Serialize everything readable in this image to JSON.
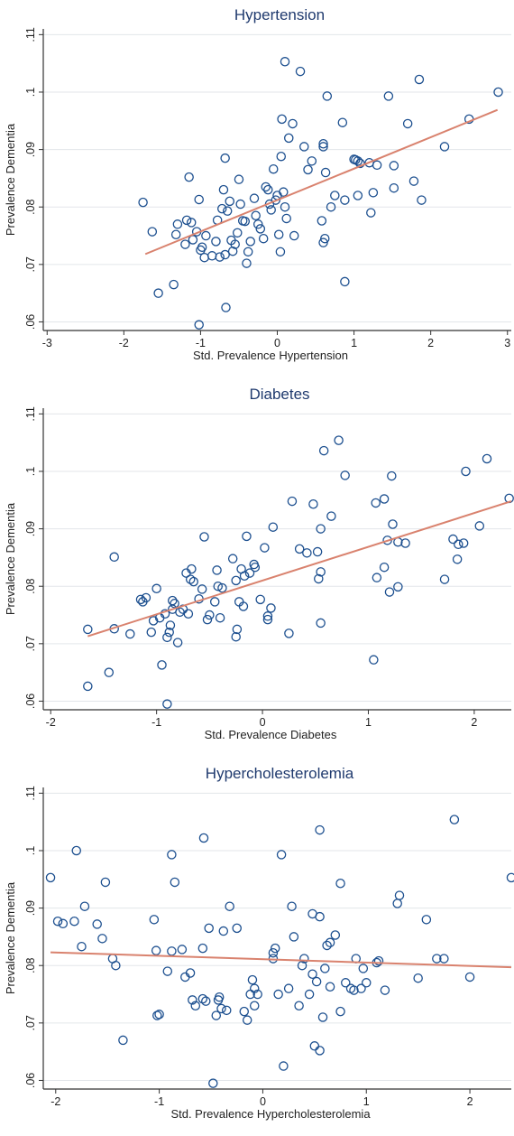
{
  "chart_data": [
    {
      "type": "scatter",
      "title": "Hypertension",
      "xlabel": "Std. Prevalence Hypertension",
      "ylabel": "Prevalence Dementia",
      "xlim": [
        -3.05,
        3.05
      ],
      "ylim": [
        0.0585,
        0.111
      ],
      "xticks": [
        -3,
        -2,
        -1,
        0,
        1,
        2,
        3
      ],
      "xtick_labels": [
        "-3",
        "-2",
        "-1",
        "0",
        "1",
        "2",
        "3"
      ],
      "yticks": [
        0.06,
        0.07,
        0.08,
        0.09,
        0.1,
        0.11
      ],
      "ytick_labels": [
        ".06",
        ".07",
        ".08",
        ".09",
        ".1",
        ".11"
      ],
      "grid": true,
      "fit_line": {
        "x": [
          -1.72,
          2.87
        ],
        "y": [
          0.0718,
          0.0969
        ]
      },
      "points": [
        [
          -1.75,
          0.0808
        ],
        [
          -1.63,
          0.0757
        ],
        [
          -1.55,
          0.065
        ],
        [
          -1.35,
          0.0665
        ],
        [
          -1.32,
          0.0752
        ],
        [
          -1.3,
          0.077
        ],
        [
          -1.2,
          0.0735
        ],
        [
          -1.18,
          0.0777
        ],
        [
          -1.15,
          0.0852
        ],
        [
          -1.12,
          0.0773
        ],
        [
          -1.1,
          0.0743
        ],
        [
          -1.05,
          0.0757
        ],
        [
          -1.02,
          0.0813
        ],
        [
          -1.0,
          0.0725
        ],
        [
          -0.98,
          0.073
        ],
        [
          -0.95,
          0.0712
        ],
        [
          -1.02,
          0.0595
        ],
        [
          -0.93,
          0.075
        ],
        [
          -0.85,
          0.0715
        ],
        [
          -0.8,
          0.074
        ],
        [
          -0.78,
          0.0777
        ],
        [
          -0.75,
          0.0713
        ],
        [
          -0.72,
          0.0797
        ],
        [
          -0.7,
          0.083
        ],
        [
          -0.68,
          0.0717
        ],
        [
          -0.68,
          0.0885
        ],
        [
          -0.67,
          0.0625
        ],
        [
          -0.65,
          0.0793
        ],
        [
          -0.62,
          0.081
        ],
        [
          -0.6,
          0.0742
        ],
        [
          -0.58,
          0.0723
        ],
        [
          -0.55,
          0.0735
        ],
        [
          -0.52,
          0.0755
        ],
        [
          -0.5,
          0.0848
        ],
        [
          -0.48,
          0.0805
        ],
        [
          -0.45,
          0.0776
        ],
        [
          -0.42,
          0.0775
        ],
        [
          -0.4,
          0.0702
        ],
        [
          -0.38,
          0.0722
        ],
        [
          -0.35,
          0.074
        ],
        [
          -0.3,
          0.0815
        ],
        [
          -0.28,
          0.0785
        ],
        [
          -0.25,
          0.077
        ],
        [
          -0.22,
          0.0762
        ],
        [
          -0.18,
          0.0745
        ],
        [
          -0.15,
          0.0835
        ],
        [
          -0.12,
          0.083
        ],
        [
          -0.1,
          0.0805
        ],
        [
          -0.08,
          0.0795
        ],
        [
          -0.05,
          0.0866
        ],
        [
          -0.02,
          0.0812
        ],
        [
          0.0,
          0.082
        ],
        [
          0.02,
          0.0752
        ],
        [
          0.04,
          0.0722
        ],
        [
          0.05,
          0.0888
        ],
        [
          0.06,
          0.0953
        ],
        [
          0.08,
          0.0826
        ],
        [
          0.1,
          0.1053
        ],
        [
          0.1,
          0.08
        ],
        [
          0.12,
          0.078
        ],
        [
          0.15,
          0.092
        ],
        [
          0.2,
          0.0945
        ],
        [
          0.22,
          0.075
        ],
        [
          0.3,
          0.1036
        ],
        [
          0.35,
          0.0905
        ],
        [
          0.4,
          0.0865
        ],
        [
          0.45,
          0.088
        ],
        [
          0.58,
          0.0776
        ],
        [
          0.6,
          0.091
        ],
        [
          0.6,
          0.0905
        ],
        [
          0.6,
          0.0738
        ],
        [
          0.62,
          0.0745
        ],
        [
          0.63,
          0.086
        ],
        [
          0.65,
          0.0993
        ],
        [
          0.7,
          0.08
        ],
        [
          0.75,
          0.082
        ],
        [
          0.85,
          0.0947
        ],
        [
          0.88,
          0.0812
        ],
        [
          0.88,
          0.067
        ],
        [
          1.0,
          0.0883
        ],
        [
          1.02,
          0.0882
        ],
        [
          1.05,
          0.088
        ],
        [
          1.05,
          0.082
        ],
        [
          1.08,
          0.0876
        ],
        [
          1.2,
          0.0877
        ],
        [
          1.22,
          0.079
        ],
        [
          1.25,
          0.0825
        ],
        [
          1.3,
          0.0873
        ],
        [
          1.45,
          0.0993
        ],
        [
          1.52,
          0.0872
        ],
        [
          1.52,
          0.0833
        ],
        [
          1.7,
          0.0945
        ],
        [
          1.78,
          0.0845
        ],
        [
          1.85,
          0.1022
        ],
        [
          1.88,
          0.0812
        ],
        [
          2.18,
          0.0905
        ],
        [
          2.5,
          0.0953
        ],
        [
          2.88,
          0.1
        ]
      ]
    },
    {
      "type": "scatter",
      "title": "Diabetes",
      "xlabel": "Std. Prevalence Diabetes",
      "ylabel": "Prevalence Dementia",
      "xlim": [
        -2.07,
        2.35
      ],
      "ylim": [
        0.0585,
        0.111
      ],
      "xticks": [
        -2,
        -1,
        0,
        1,
        2
      ],
      "xtick_labels": [
        "-2",
        "-1",
        "0",
        "1",
        "2"
      ],
      "yticks": [
        0.06,
        0.07,
        0.08,
        0.09,
        0.1,
        0.11
      ],
      "ytick_labels": [
        ".06",
        ".07",
        ".08",
        ".09",
        ".1",
        ".11"
      ],
      "grid": true,
      "fit_line": {
        "x": [
          -1.65,
          2.35
        ],
        "y": [
          0.0713,
          0.0948
        ]
      },
      "points": [
        [
          -1.65,
          0.0725
        ],
        [
          -1.65,
          0.0626
        ],
        [
          -1.45,
          0.065
        ],
        [
          -1.4,
          0.0726
        ],
        [
          -1.4,
          0.0851
        ],
        [
          -1.25,
          0.0717
        ],
        [
          -1.15,
          0.0777
        ],
        [
          -1.13,
          0.0773
        ],
        [
          -1.1,
          0.078
        ],
        [
          -1.05,
          0.072
        ],
        [
          -1.03,
          0.074
        ],
        [
          -1.0,
          0.0796
        ],
        [
          -0.97,
          0.0745
        ],
        [
          -0.95,
          0.0663
        ],
        [
          -0.92,
          0.0752
        ],
        [
          -0.9,
          0.0711
        ],
        [
          -0.9,
          0.0595
        ],
        [
          -0.88,
          0.072
        ],
        [
          -0.87,
          0.0732
        ],
        [
          -0.85,
          0.076
        ],
        [
          -0.85,
          0.0775
        ],
        [
          -0.83,
          0.077
        ],
        [
          -0.8,
          0.0702
        ],
        [
          -0.78,
          0.0755
        ],
        [
          -0.75,
          0.076
        ],
        [
          -0.72,
          0.0823
        ],
        [
          -0.7,
          0.0752
        ],
        [
          -0.68,
          0.0812
        ],
        [
          -0.67,
          0.083
        ],
        [
          -0.65,
          0.0808
        ],
        [
          -0.6,
          0.0778
        ],
        [
          -0.57,
          0.0795
        ],
        [
          -0.55,
          0.0886
        ],
        [
          -0.52,
          0.0742
        ],
        [
          -0.5,
          0.075
        ],
        [
          -0.45,
          0.0773
        ],
        [
          -0.43,
          0.0828
        ],
        [
          -0.42,
          0.08
        ],
        [
          -0.4,
          0.0745
        ],
        [
          -0.38,
          0.0797
        ],
        [
          -0.28,
          0.0848
        ],
        [
          -0.25,
          0.081
        ],
        [
          -0.25,
          0.0712
        ],
        [
          -0.24,
          0.0725
        ],
        [
          -0.22,
          0.0773
        ],
        [
          -0.2,
          0.083
        ],
        [
          -0.18,
          0.0765
        ],
        [
          -0.17,
          0.0818
        ],
        [
          -0.15,
          0.0887
        ],
        [
          -0.12,
          0.0823
        ],
        [
          -0.08,
          0.0838
        ],
        [
          -0.07,
          0.0833
        ],
        [
          -0.02,
          0.0777
        ],
        [
          0.02,
          0.0867
        ],
        [
          0.05,
          0.0748
        ],
        [
          0.05,
          0.0742
        ],
        [
          0.08,
          0.0762
        ],
        [
          0.1,
          0.0903
        ],
        [
          0.25,
          0.0718
        ],
        [
          0.28,
          0.0948
        ],
        [
          0.35,
          0.0865
        ],
        [
          0.42,
          0.0858
        ],
        [
          0.48,
          0.0943
        ],
        [
          0.52,
          0.086
        ],
        [
          0.53,
          0.0813
        ],
        [
          0.55,
          0.0736
        ],
        [
          0.55,
          0.0825
        ],
        [
          0.55,
          0.09
        ],
        [
          0.58,
          0.1036
        ],
        [
          0.65,
          0.0922
        ],
        [
          0.72,
          0.1054
        ],
        [
          0.78,
          0.0993
        ],
        [
          1.05,
          0.0672
        ],
        [
          1.07,
          0.0945
        ],
        [
          1.08,
          0.0815
        ],
        [
          1.15,
          0.0833
        ],
        [
          1.15,
          0.0952
        ],
        [
          1.18,
          0.088
        ],
        [
          1.2,
          0.079
        ],
        [
          1.22,
          0.0992
        ],
        [
          1.23,
          0.0908
        ],
        [
          1.28,
          0.0877
        ],
        [
          1.28,
          0.0799
        ],
        [
          1.35,
          0.0875
        ],
        [
          1.72,
          0.0812
        ],
        [
          1.8,
          0.0882
        ],
        [
          1.84,
          0.0847
        ],
        [
          1.85,
          0.0873
        ],
        [
          1.9,
          0.0875
        ],
        [
          1.92,
          0.1
        ],
        [
          2.05,
          0.0905
        ],
        [
          2.12,
          0.1022
        ],
        [
          2.33,
          0.0953
        ]
      ]
    },
    {
      "type": "scatter",
      "title": "Hypercholesterolemia",
      "xlabel": "Std. Prevalence Hypercholesterolemia",
      "ylabel": "Prevalence Dementia",
      "xlim": [
        -2.12,
        2.4
      ],
      "ylim": [
        0.0585,
        0.111
      ],
      "xticks": [
        -2,
        -1,
        0,
        1,
        2
      ],
      "xtick_labels": [
        "-2",
        "-1",
        "0",
        "1",
        "2"
      ],
      "yticks": [
        0.06,
        0.07,
        0.08,
        0.09,
        0.1,
        0.11
      ],
      "ytick_labels": [
        ".06",
        ".07",
        ".08",
        ".09",
        ".1",
        ".11"
      ],
      "grid": true,
      "fit_line": {
        "x": [
          -2.05,
          2.4
        ],
        "y": [
          0.0823,
          0.0797
        ]
      },
      "points": [
        [
          -2.05,
          0.0953
        ],
        [
          -1.98,
          0.0877
        ],
        [
          -1.93,
          0.0873
        ],
        [
          -1.82,
          0.0877
        ],
        [
          -1.8,
          0.1
        ],
        [
          -1.75,
          0.0833
        ],
        [
          -1.72,
          0.0903
        ],
        [
          -1.6,
          0.0872
        ],
        [
          -1.55,
          0.0847
        ],
        [
          -1.52,
          0.0945
        ],
        [
          -1.45,
          0.0812
        ],
        [
          -1.42,
          0.08
        ],
        [
          -1.35,
          0.067
        ],
        [
          -1.05,
          0.088
        ],
        [
          -1.03,
          0.0826
        ],
        [
          -1.02,
          0.0713
        ],
        [
          -1.0,
          0.0715
        ],
        [
          -0.92,
          0.079
        ],
        [
          -0.88,
          0.0993
        ],
        [
          -0.88,
          0.0825
        ],
        [
          -0.85,
          0.0945
        ],
        [
          -0.78,
          0.0828
        ],
        [
          -0.75,
          0.078
        ],
        [
          -0.7,
          0.0787
        ],
        [
          -0.68,
          0.074
        ],
        [
          -0.65,
          0.073
        ],
        [
          -0.58,
          0.0742
        ],
        [
          -0.58,
          0.083
        ],
        [
          -0.57,
          0.1022
        ],
        [
          -0.55,
          0.0738
        ],
        [
          -0.52,
          0.0865
        ],
        [
          -0.48,
          0.0595
        ],
        [
          -0.45,
          0.0713
        ],
        [
          -0.43,
          0.074
        ],
        [
          -0.42,
          0.0745
        ],
        [
          -0.4,
          0.0725
        ],
        [
          -0.38,
          0.086
        ],
        [
          -0.35,
          0.0722
        ],
        [
          -0.32,
          0.0903
        ],
        [
          -0.25,
          0.0865
        ],
        [
          -0.18,
          0.072
        ],
        [
          -0.15,
          0.0705
        ],
        [
          -0.12,
          0.075
        ],
        [
          -0.1,
          0.0775
        ],
        [
          -0.08,
          0.076
        ],
        [
          -0.08,
          0.073
        ],
        [
          -0.05,
          0.075
        ],
        [
          0.1,
          0.0822
        ],
        [
          0.1,
          0.0812
        ],
        [
          0.12,
          0.083
        ],
        [
          0.15,
          0.075
        ],
        [
          0.18,
          0.0993
        ],
        [
          0.2,
          0.0625
        ],
        [
          0.25,
          0.076
        ],
        [
          0.28,
          0.0903
        ],
        [
          0.3,
          0.085
        ],
        [
          0.35,
          0.073
        ],
        [
          0.38,
          0.08
        ],
        [
          0.4,
          0.0812
        ],
        [
          0.45,
          0.075
        ],
        [
          0.48,
          0.0785
        ],
        [
          0.48,
          0.089
        ],
        [
          0.5,
          0.066
        ],
        [
          0.52,
          0.0772
        ],
        [
          0.55,
          0.0652
        ],
        [
          0.55,
          0.1036
        ],
        [
          0.55,
          0.0885
        ],
        [
          0.58,
          0.071
        ],
        [
          0.6,
          0.0795
        ],
        [
          0.62,
          0.0835
        ],
        [
          0.65,
          0.084
        ],
        [
          0.65,
          0.0763
        ],
        [
          0.7,
          0.0853
        ],
        [
          0.75,
          0.072
        ],
        [
          0.75,
          0.0943
        ],
        [
          0.8,
          0.077
        ],
        [
          0.85,
          0.076
        ],
        [
          0.88,
          0.0757
        ],
        [
          0.9,
          0.0812
        ],
        [
          0.95,
          0.076
        ],
        [
          0.97,
          0.0795
        ],
        [
          1.0,
          0.077
        ],
        [
          1.1,
          0.0805
        ],
        [
          1.12,
          0.0808
        ],
        [
          1.18,
          0.0757
        ],
        [
          1.3,
          0.0908
        ],
        [
          1.32,
          0.0922
        ],
        [
          1.5,
          0.0778
        ],
        [
          1.58,
          0.088
        ],
        [
          1.68,
          0.0812
        ],
        [
          1.75,
          0.0812
        ],
        [
          1.85,
          0.1054
        ],
        [
          2.0,
          0.078
        ],
        [
          2.4,
          0.0953
        ]
      ]
    }
  ]
}
